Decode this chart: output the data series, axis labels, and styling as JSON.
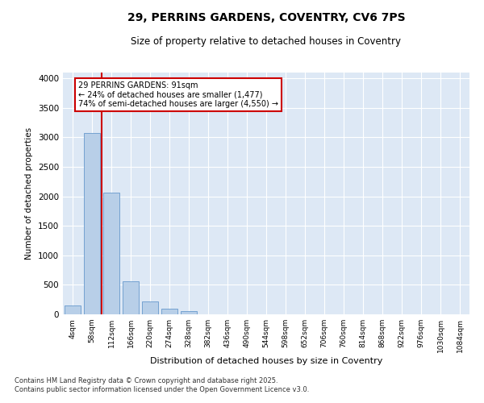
{
  "title_line1": "29, PERRINS GARDENS, COVENTRY, CV6 7PS",
  "title_line2": "Size of property relative to detached houses in Coventry",
  "xlabel": "Distribution of detached houses by size in Coventry",
  "ylabel": "Number of detached properties",
  "annotation_text": "29 PERRINS GARDENS: 91sqm\n← 24% of detached houses are smaller (1,477)\n74% of semi-detached houses are larger (4,550) →",
  "footer_line1": "Contains HM Land Registry data © Crown copyright and database right 2025.",
  "footer_line2": "Contains public sector information licensed under the Open Government Licence v3.0.",
  "bar_color": "#b8cfe8",
  "bar_edge_color": "#6699cc",
  "red_line_color": "#cc0000",
  "annotation_box_edgecolor": "#cc0000",
  "plot_bg_color": "#dde8f5",
  "grid_color": "#ffffff",
  "categories": [
    "4sqm",
    "58sqm",
    "112sqm",
    "166sqm",
    "220sqm",
    "274sqm",
    "328sqm",
    "382sqm",
    "436sqm",
    "490sqm",
    "544sqm",
    "598sqm",
    "652sqm",
    "706sqm",
    "760sqm",
    "814sqm",
    "868sqm",
    "922sqm",
    "976sqm",
    "1030sqm",
    "1084sqm"
  ],
  "values": [
    150,
    3080,
    2060,
    560,
    220,
    90,
    55,
    0,
    0,
    0,
    0,
    0,
    0,
    0,
    0,
    0,
    0,
    0,
    0,
    0,
    0
  ],
  "ylim": [
    0,
    4100
  ],
  "yticks": [
    0,
    500,
    1000,
    1500,
    2000,
    2500,
    3000,
    3500,
    4000
  ],
  "red_line_x": 1.5,
  "figsize": [
    6.0,
    5.0
  ],
  "dpi": 100
}
